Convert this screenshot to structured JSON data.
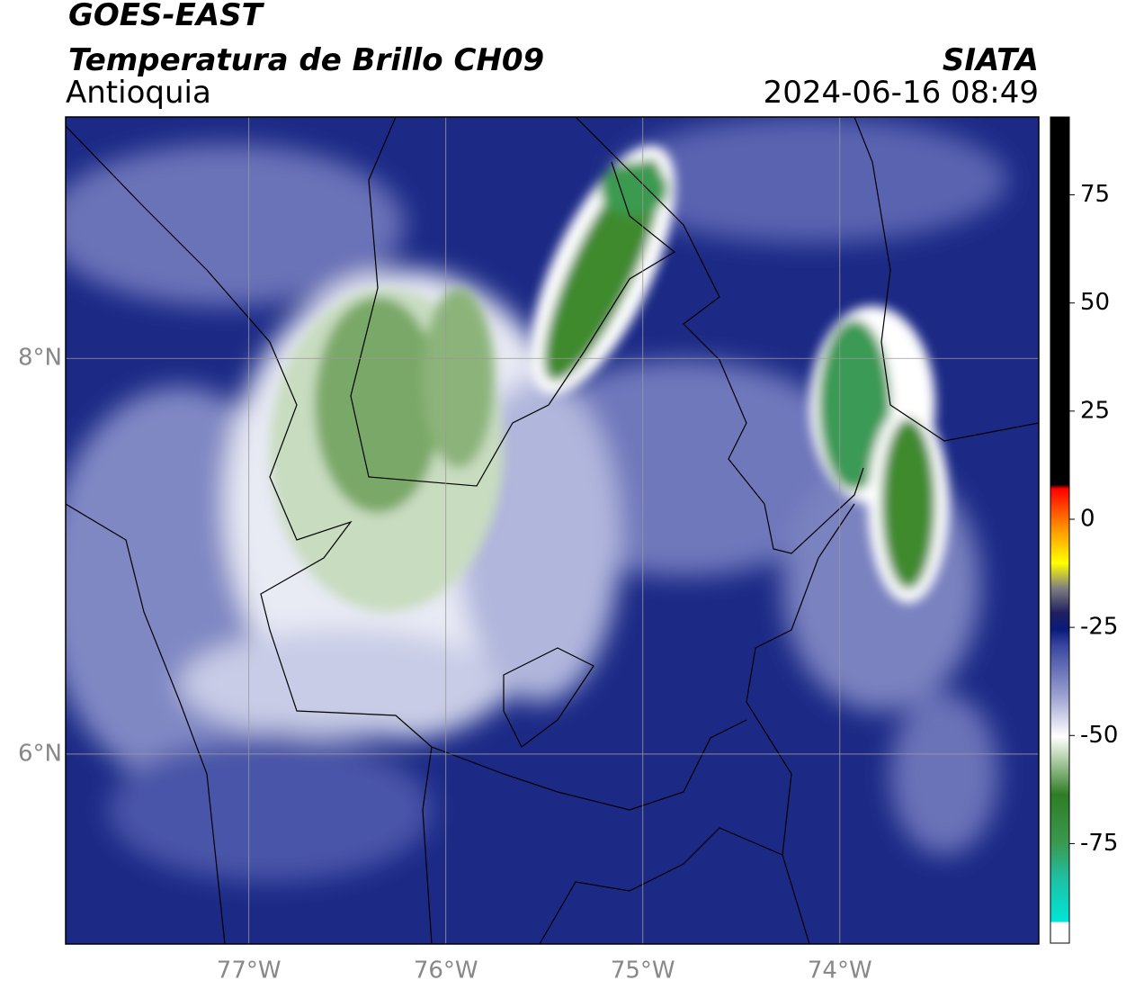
{
  "header": {
    "title": "GOES-EAST",
    "subtitle": "Temperatura de Brillo CH09",
    "region": "Antioquia",
    "agency": "SIATA",
    "datetime": "2024-06-16 08:49"
  },
  "map": {
    "xlim": [
      -77.93,
      -72.99
    ],
    "ylim": [
      5.04,
      9.22
    ],
    "xticks": [
      {
        "value": -77,
        "label": "77°W"
      },
      {
        "value": -76,
        "label": "76°W"
      },
      {
        "value": -75,
        "label": "75°W"
      },
      {
        "value": -74,
        "label": "74°W"
      }
    ],
    "yticks": [
      {
        "value": 8,
        "label": "8°N"
      },
      {
        "value": 6,
        "label": "6°N"
      }
    ],
    "grid": true
  },
  "colorbar": {
    "lim": [
      -98,
      93
    ],
    "ticks": [
      75,
      50,
      25,
      0,
      -25,
      -50,
      -75
    ]
  }
}
